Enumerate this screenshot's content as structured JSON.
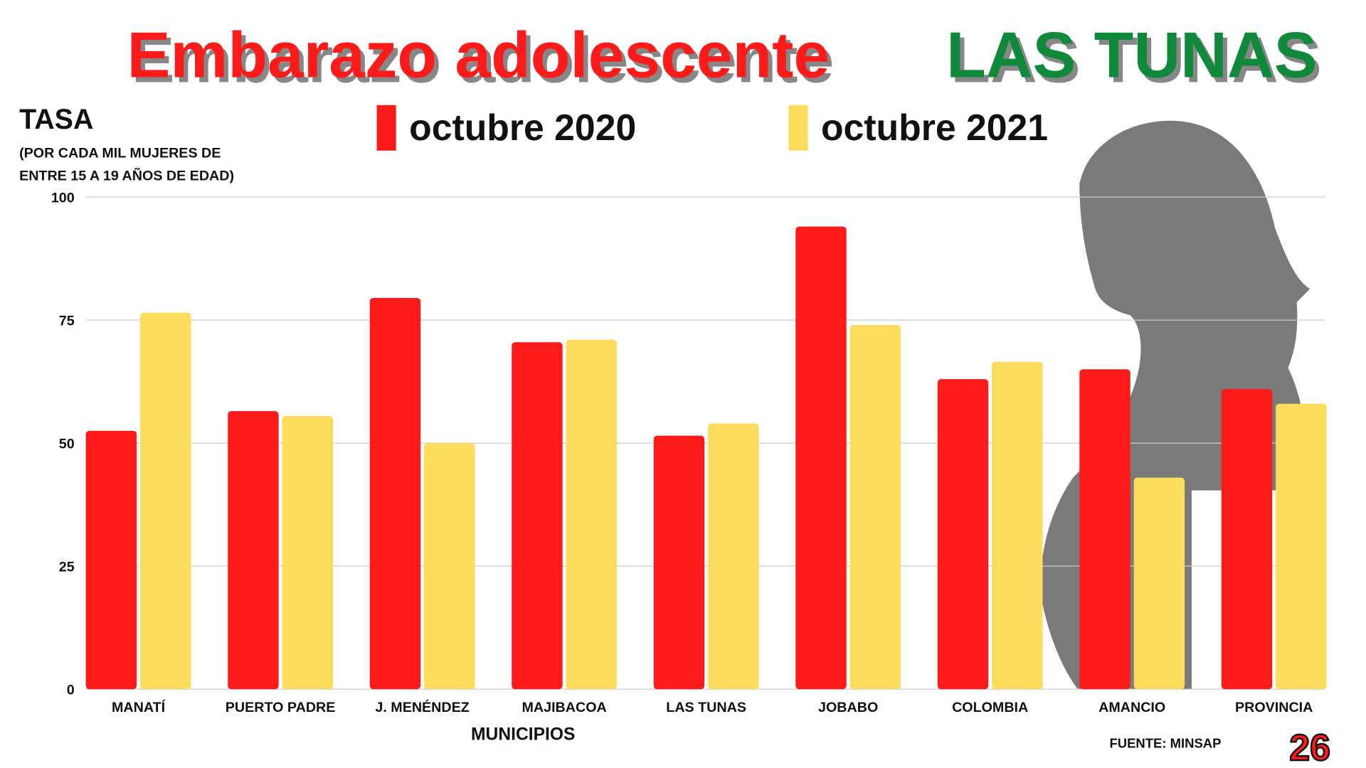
{
  "chart_data": {
    "type": "bar",
    "title": "Embarazo adolescente",
    "title_highlight": "LAS TUNAS",
    "y_label": "TASA",
    "y_label_note": [
      "(POR CADA MIL MUJERES DE",
      "ENTRE 15 A 19 AÑOS DE EDAD)"
    ],
    "x_label": "MUNICIPIOS",
    "source": "FUENTE: MINSAP",
    "logo": "26",
    "categories": [
      "MANATÍ",
      "PUERTO PADRE",
      "J. MENÉNDEZ",
      "MAJIBACOA",
      "LAS TUNAS",
      "JOBABO",
      "COLOMBIA",
      "AMANCIO",
      "PROVINCIA"
    ],
    "series": [
      {
        "name": "octubre 2020",
        "color": "#ff1a1a",
        "values": [
          52.5,
          56.5,
          79.5,
          70.5,
          51.5,
          94,
          63,
          65,
          61
        ]
      },
      {
        "name": "octubre 2021",
        "color": "#fddc5c",
        "values": [
          76.5,
          55.5,
          50,
          71,
          54,
          74,
          66.5,
          43,
          58
        ]
      }
    ],
    "ylim": [
      0,
      100
    ],
    "yticks": [
      0,
      25,
      50,
      75,
      100
    ],
    "grid": true
  }
}
